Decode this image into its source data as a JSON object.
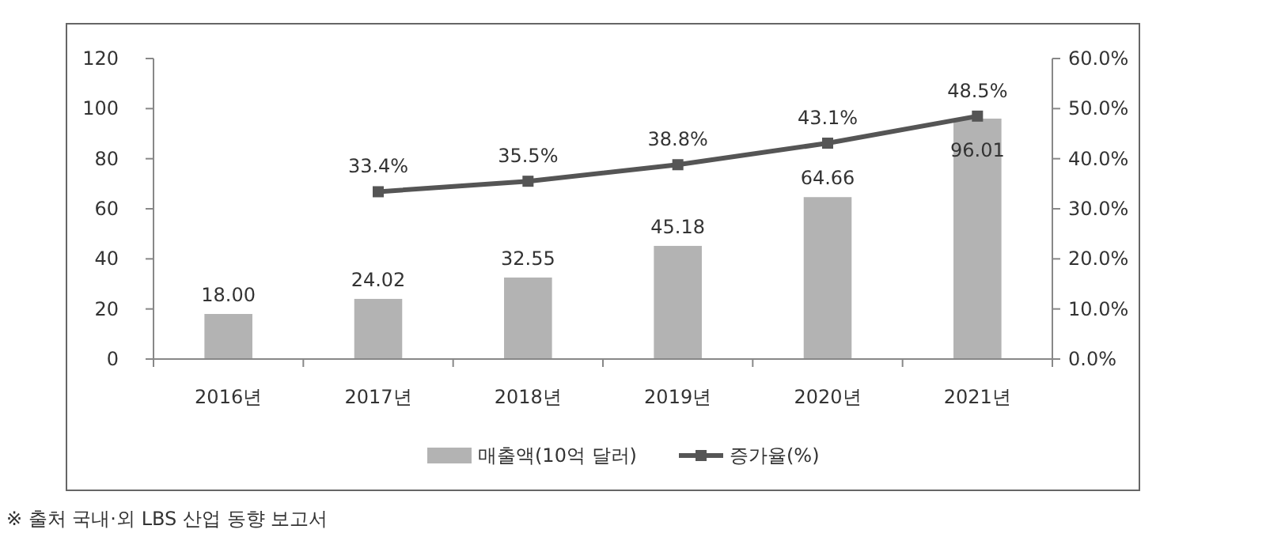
{
  "chart_data": {
    "type": "bar",
    "categories": [
      "2016년",
      "2017년",
      "2018년",
      "2019년",
      "2020년",
      "2021년"
    ],
    "series": [
      {
        "name": "매출액(10억 달러)",
        "color": "#b3b3b3",
        "values": [
          18.0,
          24.02,
          32.55,
          45.18,
          64.66,
          96.01
        ],
        "value_labels": [
          "18.00",
          "24.02",
          "32.55",
          "45.18",
          "64.66",
          "96.01"
        ]
      },
      {
        "type": "line",
        "name": "증가율(%)",
        "color": "#555555",
        "axis": "y2",
        "marker": "square",
        "line_style": "solid",
        "values": [
          null,
          33.4,
          35.5,
          38.8,
          43.1,
          48.5
        ],
        "value_labels": [
          null,
          "33.4%",
          "35.5%",
          "38.8%",
          "43.1%",
          "48.5%"
        ]
      }
    ],
    "ylim": [
      0,
      120
    ],
    "yticks": [
      0,
      20,
      40,
      60,
      80,
      100,
      120
    ],
    "y2lim": [
      0,
      60
    ],
    "y2ticks": [
      {
        "value": 0,
        "label": "0.0%"
      },
      {
        "value": 10,
        "label": "10.0%"
      },
      {
        "value": 20,
        "label": "20.0%"
      },
      {
        "value": 30,
        "label": "30.0%"
      },
      {
        "value": 40,
        "label": "40.0%"
      },
      {
        "value": 50,
        "label": "50.0%"
      },
      {
        "value": 60,
        "label": "60.0%"
      }
    ],
    "grid": false,
    "legend": "bottom",
    "annotations": [
      "※ 출처 국내·외 LBS 산업 동향 보고서"
    ]
  }
}
